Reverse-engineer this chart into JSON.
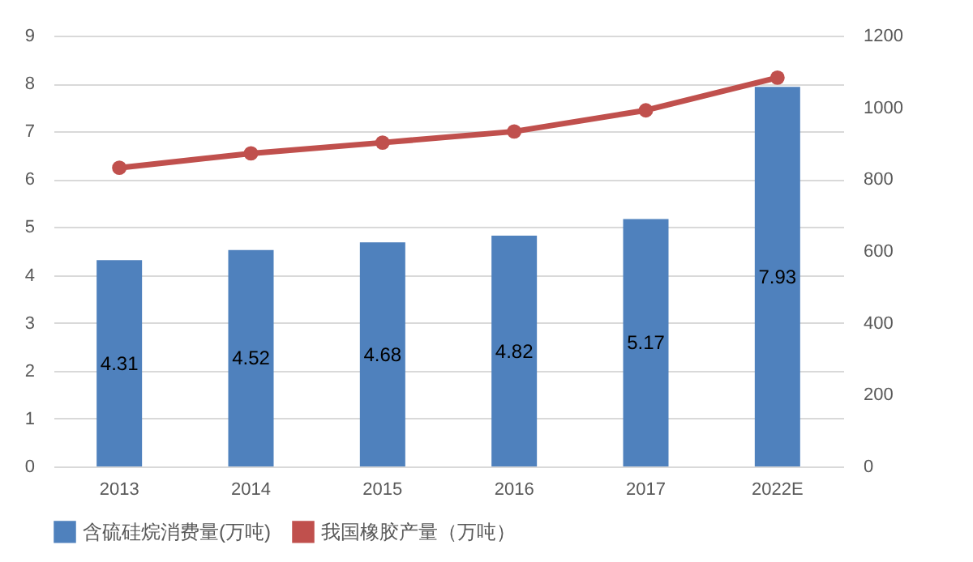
{
  "chart_data": {
    "type": "bar",
    "categories": [
      "2013",
      "2014",
      "2015",
      "2016",
      "2017",
      "2022E"
    ],
    "series": [
      {
        "name": "含硫硅烷消费量(万吨)",
        "color": "#4f81bd",
        "values": [
          4.31,
          4.52,
          4.68,
          4.82,
          5.17,
          7.93
        ],
        "value_labels": [
          "4.31",
          "4.52",
          "4.68",
          "4.82",
          "5.17",
          "7.93"
        ]
      },
      {
        "name": "我国橡胶产量（万吨）",
        "type": "line",
        "axis": "y2",
        "color": "#c0504d",
        "values": [
          832,
          872,
          902,
          933,
          992,
          1083
        ]
      }
    ],
    "ylim": [
      0,
      9
    ],
    "yticks": [
      0,
      1,
      2,
      3,
      4,
      5,
      6,
      7,
      8,
      9
    ],
    "y2lim": [
      0,
      1200
    ],
    "y2ticks": [
      0,
      200,
      400,
      600,
      800,
      1000,
      1200
    ],
    "grid": "y",
    "legend": "bottom",
    "marker": "circle"
  }
}
